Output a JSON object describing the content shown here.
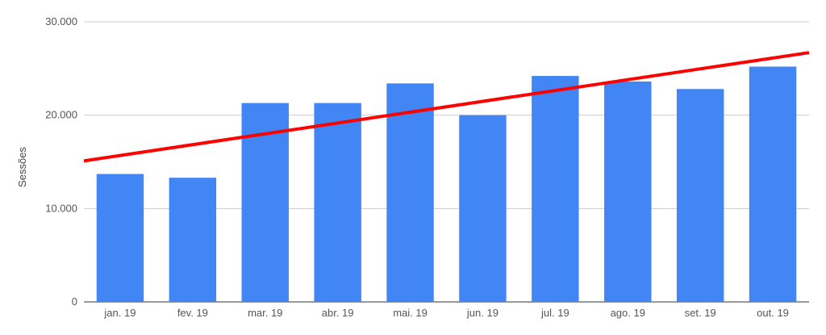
{
  "chart_data": {
    "type": "bar",
    "categories": [
      "jan. 19",
      "fev. 19",
      "mar. 19",
      "abr. 19",
      "mai. 19",
      "jun. 19",
      "jul. 19",
      "ago. 19",
      "set. 19",
      "out. 19"
    ],
    "series": [
      {
        "values": [
          13700,
          13300,
          21300,
          21300,
          23400,
          20000,
          24200,
          23600,
          22800,
          25200
        ],
        "color": "#4285f4"
      }
    ],
    "trendline": {
      "start": 15100,
      "end": 26700,
      "color": "#ff0000"
    },
    "ylabel": "Sessões",
    "ylim": [
      0,
      30000
    ],
    "yticks": [
      0,
      10000,
      20000,
      30000
    ],
    "ytick_labels": [
      "0",
      "10.000",
      "20.000",
      "30.000"
    ],
    "grid": true,
    "legend": "none"
  }
}
